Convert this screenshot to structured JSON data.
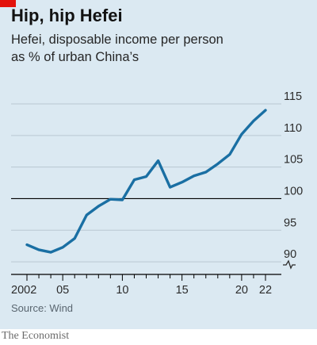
{
  "header": {
    "title": "Hip, hip Hefei",
    "subtitle_line1": "Hefei, disposable income per person",
    "subtitle_line2": "as % of urban China’s"
  },
  "footer": {
    "source": "Source: Wind",
    "publisher": "The Economist"
  },
  "colors": {
    "accent": "#e3120b",
    "line": "#1a6fa3",
    "background": "#dbe9f2",
    "grid": "#b9c8d2",
    "baseline": "#000000"
  },
  "chart_data": {
    "type": "line",
    "x_tick_labels": [
      "2002",
      "05",
      "10",
      "15",
      "20",
      "22"
    ],
    "x_tick_values": [
      2002,
      2005,
      2010,
      2015,
      2020,
      2022
    ],
    "y_ticks": [
      90,
      95,
      100,
      105,
      110,
      115
    ],
    "y_tick_labels": [
      "90",
      "95",
      "100",
      "105",
      "110",
      "115"
    ],
    "ylim": [
      88,
      115
    ],
    "xlim": [
      2002,
      2022
    ],
    "reference_line": 100,
    "axis_break_marker": true,
    "grid": true,
    "series": [
      {
        "x": [
          2002,
          2003,
          2004,
          2005,
          2006,
          2007,
          2008,
          2009,
          2010,
          2011,
          2012,
          2013,
          2014,
          2015,
          2016,
          2017,
          2018,
          2019,
          2020,
          2021,
          2022
        ],
        "values": [
          92.7,
          91.9,
          91.5,
          92.3,
          93.7,
          97.4,
          98.8,
          99.9,
          99.8,
          103.0,
          103.5,
          106.0,
          101.8,
          102.6,
          103.6,
          104.2,
          105.5,
          107.0,
          110.2,
          112.3,
          114.0
        ]
      }
    ]
  }
}
